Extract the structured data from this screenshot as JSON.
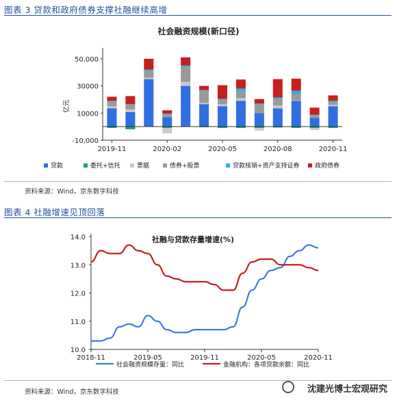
{
  "figure3": {
    "caption": "图表 3 贷款和政府债券支撑社融继续高增",
    "source": "资料来源：Wind，京东数字科技"
  },
  "figure4": {
    "caption": "图表 4 社融增速见顶回落",
    "source": "资料来源：Wind，京东数字科技"
  },
  "watermark": "沈建光博士宏观研究",
  "colors": {
    "loans": "#2f6fe0",
    "entrust_trust": "#1aa36a",
    "bills": "#c9c9c9",
    "bonds_stocks": "#9a9a9a",
    "abs": "#27b3e6",
    "gov_bonds": "#c81e1e",
    "line1": "#3b7be0",
    "line2": "#c81e1e"
  },
  "chart_data": [
    {
      "type": "bar",
      "stacked": true,
      "title": "社会融资规模(新口径)",
      "ylabel": "亿元",
      "ylim": [
        -10000,
        55000
      ],
      "yticks": [
        "-10,000",
        "10000",
        "30000",
        "50,000"
      ],
      "ytick_values": [
        -10000,
        10000,
        30000,
        50000
      ],
      "xtick_labels": [
        "2019-11",
        "2020-02",
        "2020-05",
        "2020-08",
        "2020-11"
      ],
      "xtick_index": [
        0,
        3,
        6,
        9,
        12
      ],
      "categories": [
        "2019-11",
        "2019-12",
        "2020-01",
        "2020-02",
        "2020-03",
        "2020-04",
        "2020-05",
        "2020-06",
        "2020-07",
        "2020-08",
        "2020-09",
        "2020-10",
        "2020-11"
      ],
      "series": [
        {
          "name": "贷款",
          "color": "#2f6fe0",
          "values": [
            13500,
            10700,
            35000,
            7000,
            30000,
            16500,
            15000,
            19000,
            10000,
            13500,
            19000,
            6500,
            15000
          ]
        },
        {
          "name": "委托+信托",
          "color": "#1aa36a",
          "values": [
            -1000,
            -2000,
            0,
            -1000,
            0,
            -500,
            -1000,
            -1000,
            -1000,
            -700,
            -1000,
            -1000,
            -1000
          ]
        },
        {
          "name": "票据",
          "color": "#c9c9c9",
          "values": [
            1500,
            2000,
            1000,
            -4000,
            3000,
            1000,
            1500,
            2000,
            -2000,
            2000,
            500,
            -1500,
            1000
          ]
        },
        {
          "name": "债券+股票",
          "color": "#9a9a9a",
          "values": [
            3500,
            3500,
            5000,
            2000,
            11000,
            9000,
            3500,
            5000,
            6500,
            5000,
            4500,
            1700,
            2000
          ]
        },
        {
          "name": "贷款核销+资产支持证券",
          "color": "#27b3e6",
          "values": [
            500,
            500,
            1000,
            500,
            1000,
            500,
            500,
            2000,
            500,
            1000,
            2500,
            500,
            1000
          ]
        },
        {
          "name": "政府债券",
          "color": "#c81e1e",
          "values": [
            3000,
            5800,
            8000,
            2500,
            6000,
            3000,
            10000,
            6700,
            3300,
            13500,
            8800,
            5300,
            4000
          ]
        }
      ],
      "legend_position": "bottom"
    },
    {
      "type": "line",
      "title": "社融与贷款存量增速(%)",
      "ylim": [
        10.0,
        14.0
      ],
      "yticks": [
        "10.0",
        "11.0",
        "12.0",
        "13.0",
        "14.0"
      ],
      "ytick_values": [
        10,
        11,
        12,
        13,
        14
      ],
      "xtick_labels": [
        "2018-11",
        "2019-05",
        "2019-11",
        "2020-05",
        "2020-11"
      ],
      "xtick_index": [
        0,
        6,
        12,
        18,
        24
      ],
      "x": [
        "2018-11",
        "2018-12",
        "2019-01",
        "2019-02",
        "2019-03",
        "2019-04",
        "2019-05",
        "2019-06",
        "2019-07",
        "2019-08",
        "2019-09",
        "2019-10",
        "2019-11",
        "2019-12",
        "2020-01",
        "2020-02",
        "2020-03",
        "2020-04",
        "2020-05",
        "2020-06",
        "2020-07",
        "2020-08",
        "2020-09",
        "2020-10",
        "2020-11"
      ],
      "series": [
        {
          "name": "社会融资规模存量：同比",
          "color": "#3b7be0",
          "values": [
            10.3,
            10.3,
            10.4,
            10.8,
            10.9,
            10.8,
            11.2,
            11.0,
            10.7,
            10.6,
            10.6,
            10.7,
            10.7,
            10.7,
            10.7,
            10.8,
            11.5,
            12.1,
            12.5,
            12.8,
            12.9,
            13.3,
            13.5,
            13.7,
            13.6
          ]
        },
        {
          "name": "金融机构：各项贷款余额：同比",
          "color": "#c81e1e",
          "values": [
            13.1,
            13.5,
            13.4,
            13.4,
            13.7,
            13.5,
            13.4,
            13.0,
            12.6,
            12.5,
            12.4,
            12.4,
            12.4,
            12.3,
            12.1,
            12.1,
            12.7,
            13.1,
            13.2,
            13.2,
            13.0,
            13.0,
            13.0,
            12.9,
            12.8
          ]
        }
      ],
      "legend_position": "bottom"
    }
  ]
}
